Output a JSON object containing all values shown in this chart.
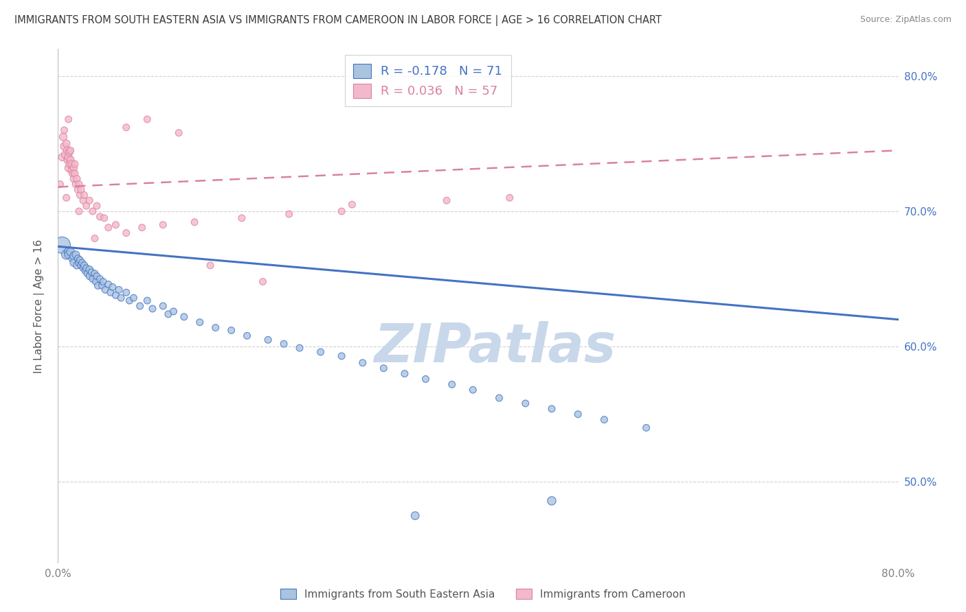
{
  "title": "IMMIGRANTS FROM SOUTH EASTERN ASIA VS IMMIGRANTS FROM CAMEROON IN LABOR FORCE | AGE > 16 CORRELATION CHART",
  "source": "Source: ZipAtlas.com",
  "ylabel": "In Labor Force | Age > 16",
  "xlim": [
    0.0,
    0.8
  ],
  "ylim": [
    0.44,
    0.82
  ],
  "xticks": [
    0.0,
    0.1,
    0.2,
    0.3,
    0.4,
    0.5,
    0.6,
    0.7,
    0.8
  ],
  "yticks": [
    0.5,
    0.6,
    0.7,
    0.8
  ],
  "xtick_labels": [
    "0.0%",
    "",
    "",
    "",
    "",
    "",
    "",
    "",
    "80.0%"
  ],
  "ytick_labels_right": [
    "50.0%",
    "60.0%",
    "70.0%",
    "80.0%"
  ],
  "blue_line_color": "#4472c4",
  "pink_line_color": "#d9829a",
  "blue_scatter_color": "#aac4e0",
  "pink_scatter_color": "#f4b8cc",
  "watermark": "ZIPatlas",
  "watermark_color": "#c8d8ea",
  "background_color": "#ffffff",
  "title_color": "#3a3a3a",
  "axis_label_color": "#555555",
  "tick_color": "#808080",
  "grid_color": "#cccccc",
  "blue_x": [
    0.004,
    0.008,
    0.01,
    0.01,
    0.012,
    0.014,
    0.015,
    0.015,
    0.017,
    0.018,
    0.019,
    0.02,
    0.021,
    0.022,
    0.023,
    0.024,
    0.025,
    0.026,
    0.027,
    0.028,
    0.03,
    0.03,
    0.032,
    0.033,
    0.035,
    0.036,
    0.037,
    0.038,
    0.04,
    0.042,
    0.043,
    0.045,
    0.048,
    0.05,
    0.052,
    0.055,
    0.058,
    0.06,
    0.065,
    0.068,
    0.072,
    0.078,
    0.085,
    0.09,
    0.1,
    0.105,
    0.11,
    0.12,
    0.135,
    0.15,
    0.165,
    0.18,
    0.2,
    0.215,
    0.23,
    0.25,
    0.27,
    0.29,
    0.31,
    0.33,
    0.35,
    0.375,
    0.395,
    0.42,
    0.445,
    0.47,
    0.495,
    0.52,
    0.56,
    0.34,
    0.47
  ],
  "blue_y": [
    0.675,
    0.668,
    0.67,
    0.668,
    0.67,
    0.665,
    0.667,
    0.662,
    0.668,
    0.66,
    0.665,
    0.662,
    0.664,
    0.66,
    0.662,
    0.658,
    0.66,
    0.656,
    0.658,
    0.654,
    0.657,
    0.652,
    0.655,
    0.65,
    0.654,
    0.648,
    0.652,
    0.645,
    0.65,
    0.645,
    0.648,
    0.642,
    0.646,
    0.64,
    0.644,
    0.638,
    0.642,
    0.636,
    0.64,
    0.634,
    0.636,
    0.63,
    0.634,
    0.628,
    0.63,
    0.624,
    0.626,
    0.622,
    0.618,
    0.614,
    0.612,
    0.608,
    0.605,
    0.602,
    0.599,
    0.596,
    0.593,
    0.588,
    0.584,
    0.58,
    0.576,
    0.572,
    0.568,
    0.562,
    0.558,
    0.554,
    0.55,
    0.546,
    0.54,
    0.475,
    0.486
  ],
  "blue_sizes": [
    300,
    100,
    80,
    70,
    70,
    65,
    65,
    60,
    60,
    55,
    55,
    55,
    50,
    55,
    50,
    50,
    55,
    50,
    50,
    50,
    55,
    50,
    50,
    50,
    50,
    50,
    50,
    50,
    50,
    50,
    50,
    50,
    50,
    50,
    50,
    50,
    50,
    50,
    50,
    50,
    50,
    50,
    50,
    50,
    50,
    50,
    50,
    50,
    50,
    50,
    50,
    50,
    50,
    50,
    50,
    50,
    50,
    50,
    50,
    50,
    50,
    50,
    50,
    50,
    50,
    50,
    50,
    50,
    50,
    70,
    80
  ],
  "pink_x": [
    0.002,
    0.004,
    0.005,
    0.006,
    0.007,
    0.008,
    0.009,
    0.009,
    0.01,
    0.01,
    0.011,
    0.011,
    0.012,
    0.013,
    0.013,
    0.014,
    0.015,
    0.015,
    0.016,
    0.017,
    0.018,
    0.019,
    0.02,
    0.021,
    0.022,
    0.024,
    0.025,
    0.027,
    0.03,
    0.033,
    0.037,
    0.04,
    0.044,
    0.048,
    0.055,
    0.065,
    0.08,
    0.1,
    0.13,
    0.175,
    0.22,
    0.27,
    0.145,
    0.195,
    0.28,
    0.37,
    0.43,
    0.115,
    0.065,
    0.085,
    0.035,
    0.02,
    0.01,
    0.008,
    0.006,
    0.012,
    0.016
  ],
  "pink_y": [
    0.72,
    0.74,
    0.755,
    0.748,
    0.742,
    0.75,
    0.745,
    0.738,
    0.74,
    0.732,
    0.744,
    0.735,
    0.738,
    0.73,
    0.735,
    0.728,
    0.732,
    0.724,
    0.728,
    0.72,
    0.724,
    0.716,
    0.72,
    0.712,
    0.716,
    0.708,
    0.712,
    0.704,
    0.708,
    0.7,
    0.704,
    0.696,
    0.695,
    0.688,
    0.69,
    0.684,
    0.688,
    0.69,
    0.692,
    0.695,
    0.698,
    0.7,
    0.66,
    0.648,
    0.705,
    0.708,
    0.71,
    0.758,
    0.762,
    0.768,
    0.68,
    0.7,
    0.768,
    0.71,
    0.76,
    0.745,
    0.735
  ],
  "pink_sizes": [
    50,
    60,
    65,
    65,
    65,
    60,
    65,
    60,
    65,
    60,
    60,
    58,
    58,
    58,
    56,
    56,
    56,
    54,
    54,
    54,
    54,
    52,
    52,
    52,
    50,
    50,
    50,
    50,
    50,
    50,
    50,
    50,
    50,
    50,
    50,
    50,
    50,
    50,
    50,
    50,
    50,
    50,
    50,
    50,
    50,
    50,
    50,
    50,
    50,
    50,
    50,
    50,
    50,
    50,
    50,
    50,
    50
  ],
  "blue_trend_x0": 0.0,
  "blue_trend_y0": 0.674,
  "blue_trend_x1": 0.8,
  "blue_trend_y1": 0.62,
  "pink_trend_x0": 0.0,
  "pink_trend_y0": 0.718,
  "pink_trend_x1": 0.8,
  "pink_trend_y1": 0.745
}
